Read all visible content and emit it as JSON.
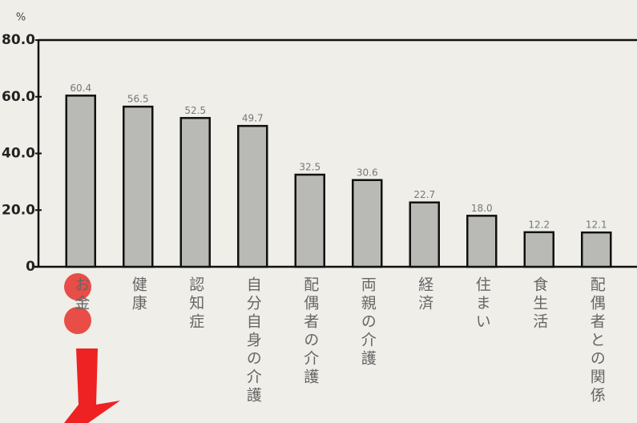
{
  "chart_data": {
    "type": "bar",
    "y_unit": "%",
    "categories": [
      "お金",
      "健康",
      "認知症",
      "自分自身の介護",
      "配偶者の介護",
      "両親の介護",
      "経済",
      "住まい",
      "食生活",
      "配偶者との関係"
    ],
    "values": [
      60.4,
      56.5,
      52.5,
      49.7,
      32.5,
      30.6,
      22.7,
      18.0,
      12.2,
      12.1
    ],
    "value_labels": [
      "60.4",
      "56.5",
      "52.5",
      "49.7",
      "32.5",
      "30.6",
      "22.7",
      "18.0",
      "12.2",
      "12.1"
    ],
    "color": "#b9b9b6",
    "ylim": [
      0,
      80
    ],
    "yticks": [
      0,
      {
        "value": 20,
        "label": "20.0"
      },
      {
        "value": 40,
        "label": "40.0"
      },
      {
        "value": 60,
        "label": "60.0"
      },
      {
        "value": 80,
        "label": "80.0"
      }
    ],
    "grid": false
  }
}
